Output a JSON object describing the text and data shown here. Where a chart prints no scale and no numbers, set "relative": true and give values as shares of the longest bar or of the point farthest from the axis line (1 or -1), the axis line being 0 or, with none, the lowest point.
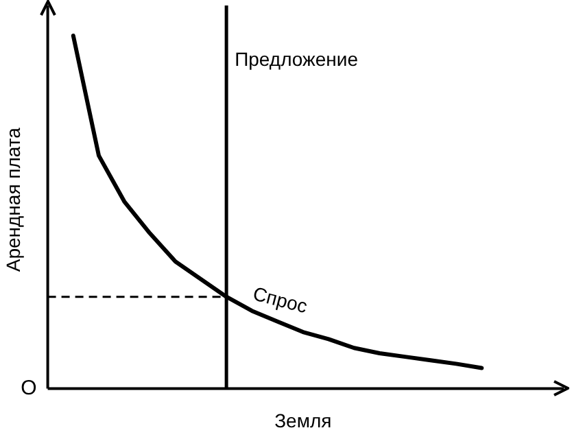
{
  "chart_data": {
    "type": "line",
    "relative": true,
    "xlabel": "Земля",
    "ylabel": "Арендная плата",
    "tick_labels": false,
    "grid": false,
    "legend": false,
    "marker": "none",
    "line_style": "solid",
    "annotations": [
      "Предложение",
      "O"
    ],
    "categories": [
      null,
      null,
      null,
      null,
      null,
      null,
      null,
      null,
      null,
      null,
      null,
      null,
      null,
      null,
      null,
      null,
      null,
      null,
      null,
      null,
      null
    ],
    "ref_lines": [
      {
        "axis": "y",
        "value": 0.26,
        "color": "#000000",
        "line_style": "dashed"
      }
    ],
    "series": [
      {
        "name": "Спрос",
        "color": "#000000",
        "values": [
          null,
          1.0,
          0.66,
          0.53,
          0.44,
          0.36,
          0.31,
          0.26,
          0.22,
          0.19,
          0.16,
          0.14,
          0.115,
          0.1,
          0.09,
          0.08,
          0.07,
          0.058,
          null,
          null,
          null
        ]
      }
    ]
  }
}
